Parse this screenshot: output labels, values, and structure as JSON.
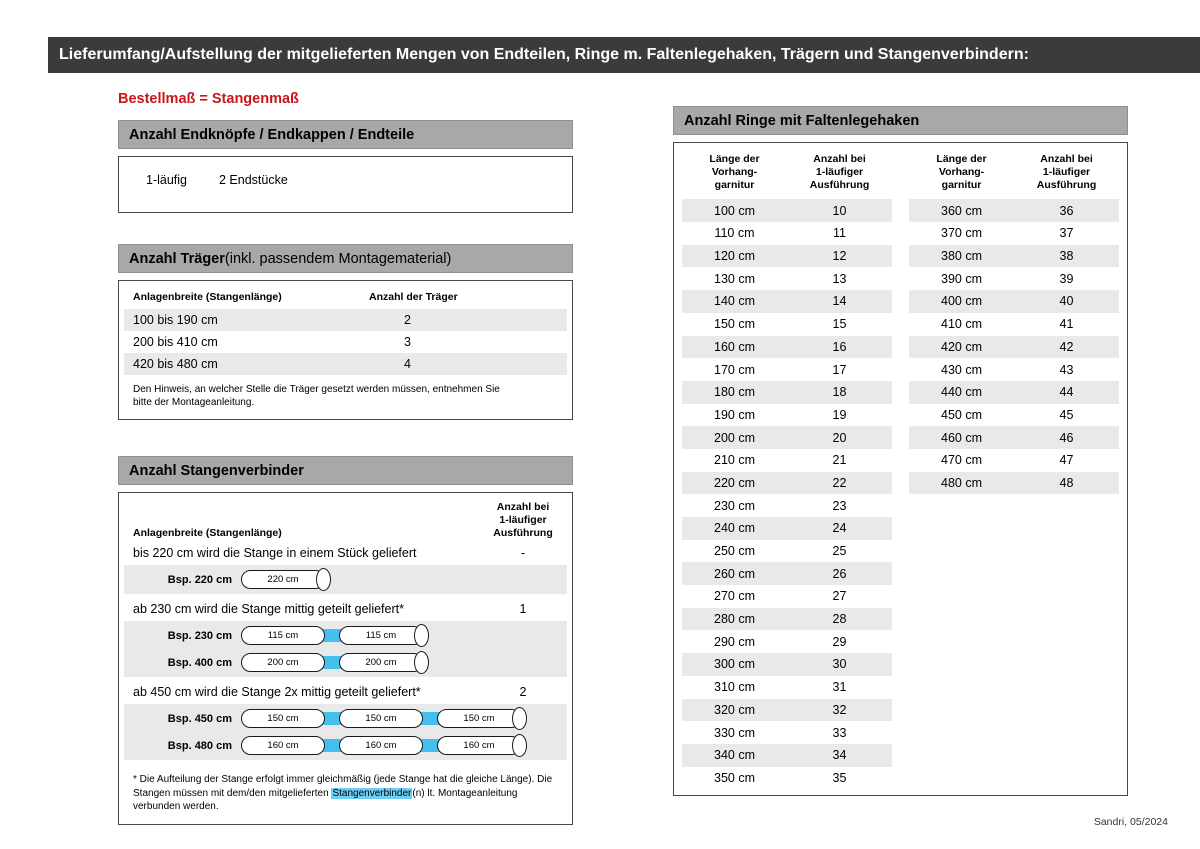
{
  "header": {
    "title": "Lieferumfang/Aufstellung der mitgelieferten Mengen von Endteilen, Ringe m. Faltenlegehaken, Trägern und Stangenverbindern:"
  },
  "colors": {
    "topbar_dark": "#3b3b3b",
    "section_header_gray": "#a8a8a8",
    "stripe_gray": "#e9e9e9",
    "accent_red": "#c8171c",
    "connector_blue": "#45bfee",
    "highlight_blue": "#6ecff6"
  },
  "left": {
    "note_red": "Bestellmaß = Stangenmaß",
    "endteile": {
      "title": "Anzahl Endknöpfe / Endkappen / Endteile",
      "row_label": "1-läufig",
      "row_value": "2 Endstücke"
    },
    "traeger": {
      "title_bold": "Anzahl Träger",
      "title_rest": " (inkl. passendem Montagematerial)",
      "col1": "Anlagenbreite (Stangenlänge)",
      "col2": "Anzahl der Träger",
      "rows": [
        {
          "range": "100 bis 190 cm",
          "count": "2"
        },
        {
          "range": "200 bis 410 cm",
          "count": "3"
        },
        {
          "range": "420 bis 480 cm",
          "count": "4"
        }
      ],
      "note": "Den Hinweis, an welcher Stelle die Träger gesetzt werden müssen, entnehmen Sie bitte der Montageanleitung."
    },
    "verbinder": {
      "title": "Anzahl Stangenverbinder",
      "col1": "Anlagenbreite (Stangenlänge)",
      "col2_lines": [
        "Anzahl bei",
        "1-läufiger",
        "Ausführung"
      ],
      "groups": [
        {
          "desc": "bis 220 cm wird die Stange in einem Stück geliefert",
          "count": "-",
          "examples": [
            {
              "label": "Bsp. 220 cm",
              "segments": [
                "220 cm"
              ]
            }
          ]
        },
        {
          "desc": "ab 230 cm wird die Stange mittig geteilt geliefert*",
          "count": "1",
          "examples": [
            {
              "label": "Bsp. 230 cm",
              "segments": [
                "115 cm",
                "115 cm"
              ]
            },
            {
              "label": "Bsp. 400 cm",
              "segments": [
                "200 cm",
                "200 cm"
              ]
            }
          ]
        },
        {
          "desc": "ab 450 cm wird die Stange 2x mittig geteilt geliefert*",
          "count": "2",
          "examples": [
            {
              "label": "Bsp. 450 cm",
              "segments": [
                "150 cm",
                "150 cm",
                "150 cm"
              ]
            },
            {
              "label": "Bsp. 480 cm",
              "segments": [
                "160 cm",
                "160 cm",
                "160 cm"
              ]
            }
          ]
        }
      ],
      "footnote_pre": "* Die Aufteilung der Stange erfolgt immer gleichmäßig (jede Stange hat die gleiche Länge). Die Stangen müssen mit dem/den mitgelieferten ",
      "footnote_highlight": "Stangenverbinder",
      "footnote_post": "(n) lt. Montageanleitung verbunden werden."
    }
  },
  "right": {
    "title": "Anzahl Ringe mit Faltenlegehaken",
    "col1_lines": [
      "Länge der",
      "Vorhang-",
      "garnitur"
    ],
    "col2_lines": [
      "Anzahl bei",
      "1-läufiger",
      "Ausführung"
    ],
    "table1": [
      [
        "100 cm",
        "10"
      ],
      [
        "110 cm",
        "11"
      ],
      [
        "120 cm",
        "12"
      ],
      [
        "130 cm",
        "13"
      ],
      [
        "140 cm",
        "14"
      ],
      [
        "150 cm",
        "15"
      ],
      [
        "160 cm",
        "16"
      ],
      [
        "170 cm",
        "17"
      ],
      [
        "180 cm",
        "18"
      ],
      [
        "190 cm",
        "19"
      ],
      [
        "200 cm",
        "20"
      ],
      [
        "210 cm",
        "21"
      ],
      [
        "220 cm",
        "22"
      ],
      [
        "230 cm",
        "23"
      ],
      [
        "240 cm",
        "24"
      ],
      [
        "250 cm",
        "25"
      ],
      [
        "260 cm",
        "26"
      ],
      [
        "270 cm",
        "27"
      ],
      [
        "280 cm",
        "28"
      ],
      [
        "290 cm",
        "29"
      ],
      [
        "300 cm",
        "30"
      ],
      [
        "310 cm",
        "31"
      ],
      [
        "320 cm",
        "32"
      ],
      [
        "330 cm",
        "33"
      ],
      [
        "340 cm",
        "34"
      ],
      [
        "350 cm",
        "35"
      ]
    ],
    "table2": [
      [
        "360 cm",
        "36"
      ],
      [
        "370 cm",
        "37"
      ],
      [
        "380 cm",
        "38"
      ],
      [
        "390 cm",
        "39"
      ],
      [
        "400 cm",
        "40"
      ],
      [
        "410 cm",
        "41"
      ],
      [
        "420 cm",
        "42"
      ],
      [
        "430 cm",
        "43"
      ],
      [
        "440 cm",
        "44"
      ],
      [
        "450 cm",
        "45"
      ],
      [
        "460 cm",
        "46"
      ],
      [
        "470 cm",
        "47"
      ],
      [
        "480 cm",
        "48"
      ]
    ]
  },
  "footer": {
    "credit": "Sandri, 05/2024"
  }
}
